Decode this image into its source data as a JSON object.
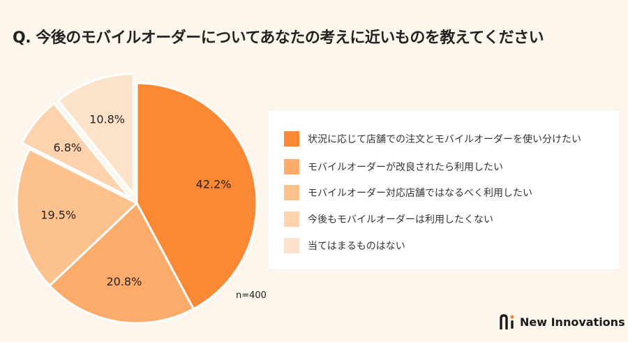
{
  "title": "Q. 今後のモバイルオーダーについてあなたの考えに近いものを教えてください",
  "sample_size": "n=400",
  "brand": {
    "name": "New Innovations",
    "logo_icon": "ni-logo-icon"
  },
  "chart_data": {
    "type": "pie",
    "start_angle_deg": 0,
    "direction": "clockwise",
    "slices": [
      {
        "label": "状況に応じて店舗での注文とモバイルオーダーを使い分けたい",
        "value": 42.2,
        "value_label": "42.2%",
        "color": "#fb8832",
        "exploded": false
      },
      {
        "label": "モバイルオーダーが改良されたら利用したい",
        "value": 20.8,
        "value_label": "20.8%",
        "color": "#fcab6b",
        "exploded": false
      },
      {
        "label": "モバイルオーダー対応店舗ではなるべく利用したい",
        "value": 19.5,
        "value_label": "19.5%",
        "color": "#fdc18e",
        "exploded": false
      },
      {
        "label": "今後もモバイルオーダーは利用したくない",
        "value": 6.8,
        "value_label": "6.8%",
        "color": "#fdd3ad",
        "exploded": true
      },
      {
        "label": "当てはまるものはない",
        "value": 10.8,
        "value_label": "10.8%",
        "color": "#fde2ca",
        "exploded": true
      }
    ]
  }
}
